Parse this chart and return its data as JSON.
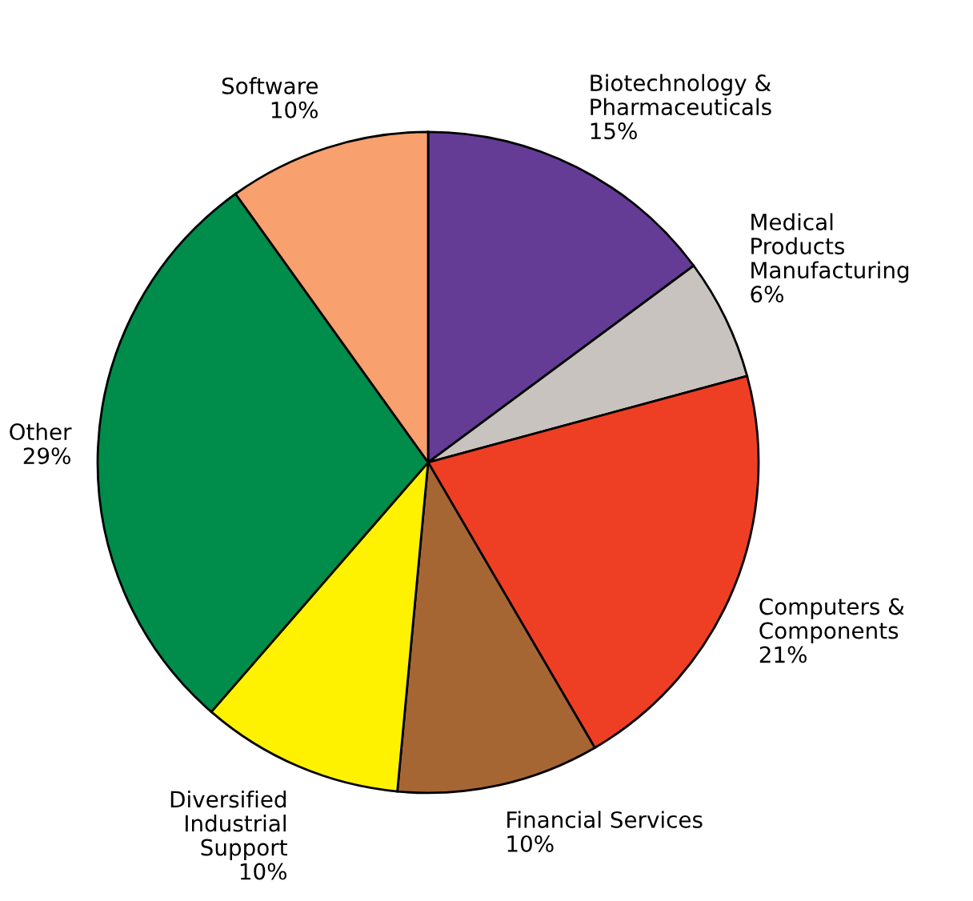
{
  "chart_data": {
    "type": "pie",
    "categories": [
      "Biotechnology &\nPharmaceuticals",
      "Medical\nProducts\nManufacturing",
      "Computers &\nComponents",
      "Financial Services",
      "Diversified\nIndustrial\nSupport",
      "Other",
      "Software"
    ],
    "values": [
      15,
      6,
      21,
      10,
      10,
      29,
      10
    ],
    "value_labels": [
      "15%",
      "6%",
      "21%",
      "10%",
      "10%",
      "29%",
      "10%"
    ],
    "colors": [
      "#643c96",
      "#c8c3be",
      "#ee3f24",
      "#a66634",
      "#fff200",
      "#008c4a",
      "#f8a06e"
    ]
  }
}
